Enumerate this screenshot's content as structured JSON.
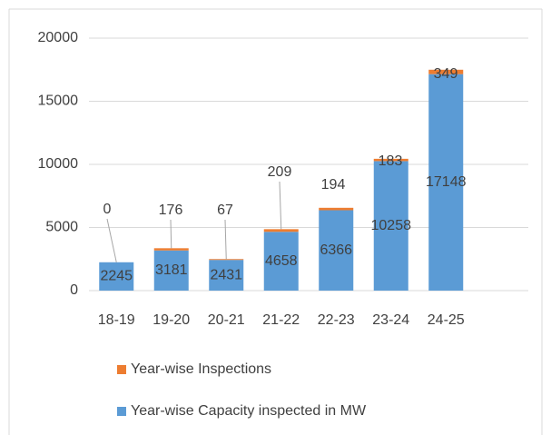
{
  "chart_data": {
    "type": "bar",
    "stacked": true,
    "categories": [
      "18-19",
      "19-20",
      "20-21",
      "21-22",
      "22-23",
      "23-24",
      "24-25",
      null
    ],
    "series": [
      {
        "name": "Year-wise Capacity inspected in MW",
        "color": "#5b9bd5",
        "values": [
          2245,
          3181,
          2431,
          4658,
          6366,
          10258,
          17148,
          null
        ]
      },
      {
        "name": "Year-wise Inspections",
        "color": "#ed7d31",
        "values": [
          0,
          176,
          67,
          209,
          194,
          183,
          349,
          null
        ]
      }
    ],
    "ylim": [
      0,
      20000
    ],
    "yticks": [
      0,
      5000,
      10000,
      15000,
      20000
    ],
    "grid": true,
    "legend": "bottom"
  }
}
